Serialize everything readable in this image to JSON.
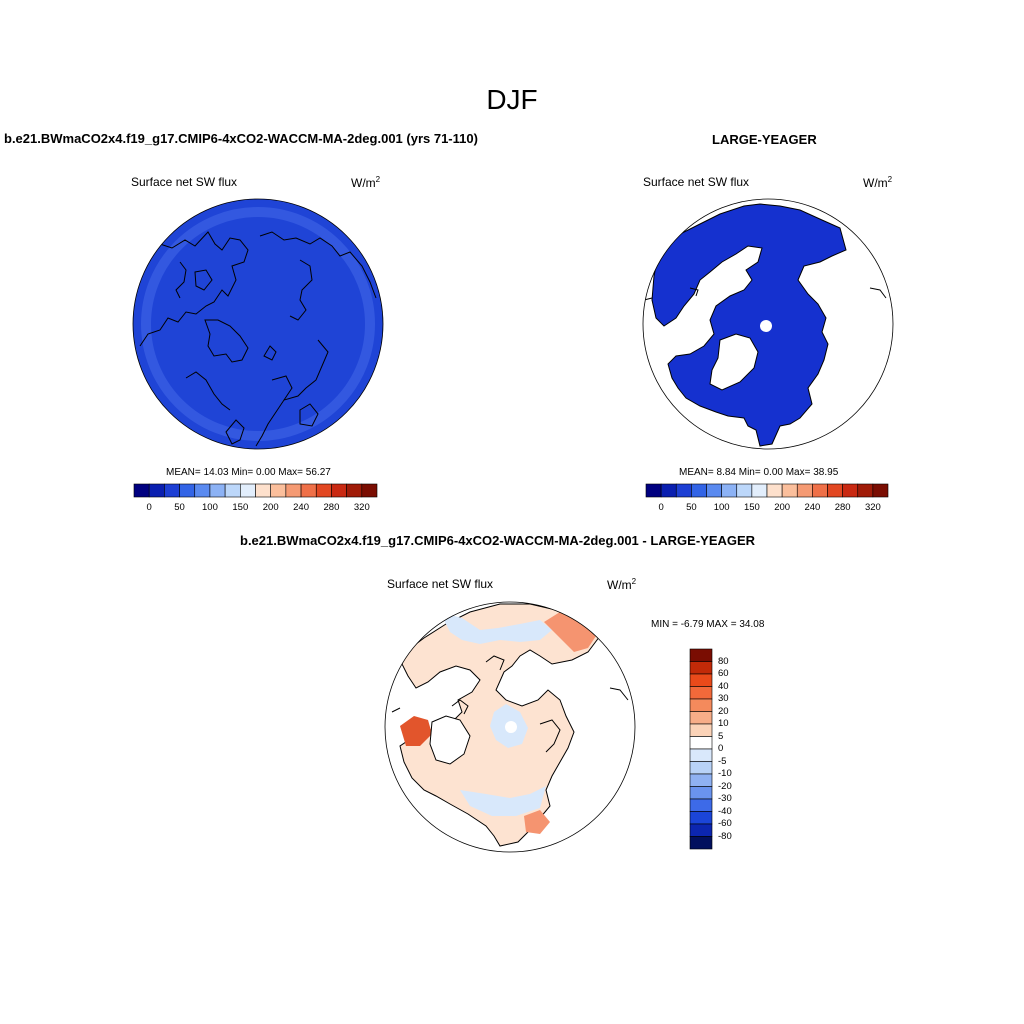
{
  "season": "DJF",
  "panels": {
    "top_left": {
      "case": "b.e21.BWmaCO2x4.f19_g17.CMIP6-4xCO2-WACCM-MA-2deg.001 (yrs 71-110)",
      "variable": "Surface net SW flux",
      "units_base": "W/m",
      "units_exp": "2",
      "stats": "MEAN=  14.03  Min=    0.00  Max=  56.27"
    },
    "top_right": {
      "case": "LARGE-YEAGER",
      "variable": "Surface net SW flux",
      "units_base": "W/m",
      "units_exp": "2",
      "stats": "MEAN=   8.84  Min=    0.00  Max=  38.95"
    },
    "bottom": {
      "case": "b.e21.BWmaCO2x4.f19_g17.CMIP6-4xCO2-WACCM-MA-2deg.001 - LARGE-YEAGER",
      "variable": "Surface net SW flux",
      "units_base": "W/m",
      "units_exp": "2",
      "stats": "MIN =  -6.79 MAX =  34.08"
    }
  },
  "colorbar_abs": {
    "colors": [
      "#000080",
      "#0a1fb0",
      "#1d3fd4",
      "#3264e6",
      "#5a8af0",
      "#8cb2f5",
      "#bcd7fa",
      "#e2eefc",
      "#fde0cc",
      "#fbbf9c",
      "#f59a73",
      "#ef7048",
      "#e24722",
      "#c92912",
      "#a01b08",
      "#7a0d02"
    ],
    "ticks": [
      "0",
      "50",
      "100",
      "150",
      "200",
      "240",
      "280",
      "320"
    ]
  },
  "colorbar_diff": {
    "colors": [
      "#7a0d02",
      "#c22a08",
      "#ea4a1a",
      "#f2693a",
      "#f48a5c",
      "#f7ad88",
      "#fbd3b8",
      "#ffffff",
      "#d9e8fb",
      "#b8d2f7",
      "#8fb1f2",
      "#6a93ee",
      "#3d6ae8",
      "#1b45d8",
      "#0c26b0",
      "#02105e"
    ],
    "ticks": [
      "80",
      "60",
      "40",
      "30",
      "20",
      "10",
      "5",
      "0",
      "-5",
      "-10",
      "-20",
      "-30",
      "-40",
      "-60",
      "-80"
    ]
  },
  "map_colors": {
    "ocean_model": "#1f44d6",
    "ocean_model_edge": "#3358e0",
    "ocean_obs": "#1531cf",
    "diff_base": "#fde3d1",
    "diff_blue": "#d8e8fb",
    "diff_orange": "#f59470",
    "diff_red": "#e2552c"
  }
}
